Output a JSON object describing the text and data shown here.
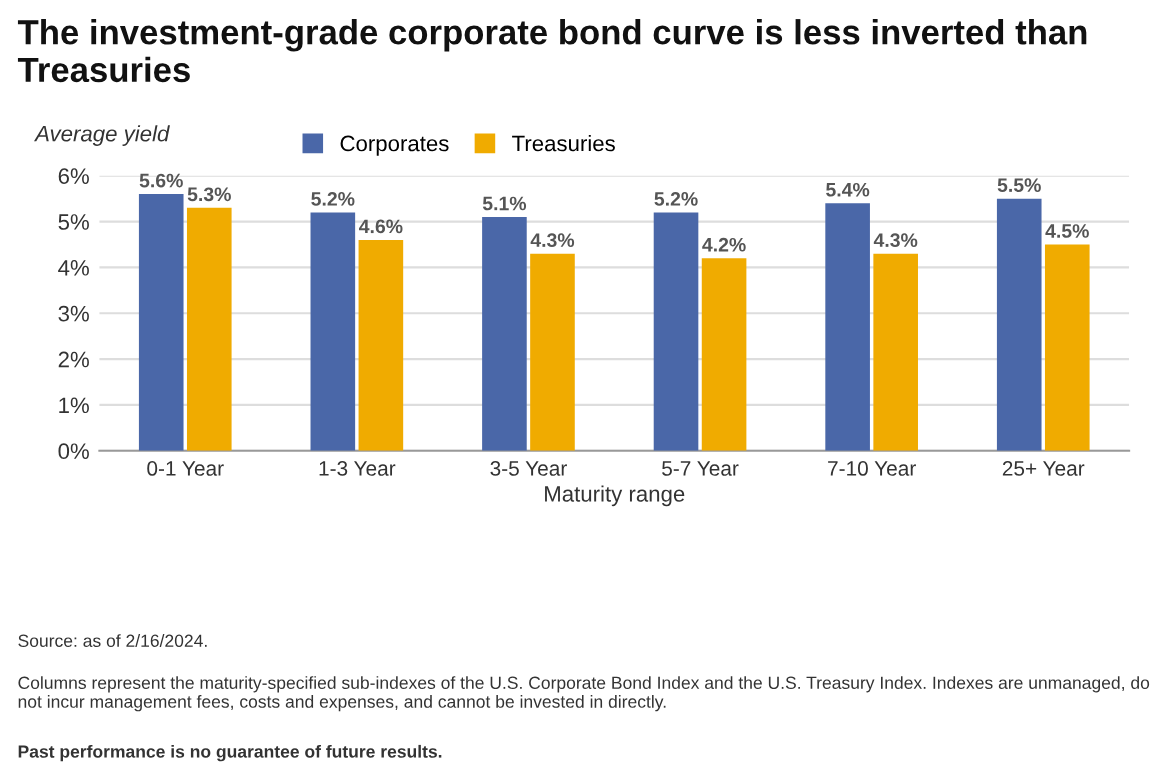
{
  "chart_data": {
    "type": "bar",
    "title": "The investment-grade corporate bond curve is less inverted than Treasuries",
    "ylabel": "Average yield",
    "xlabel": "Maturity range",
    "categories": [
      "0-1 Year",
      "1-3 Year",
      "3-5 Year",
      "5-7 Year",
      "7-10 Year",
      "25+ Year"
    ],
    "series": [
      {
        "name": "Corporates",
        "color": "#4a67a8",
        "values": [
          5.6,
          5.2,
          5.1,
          5.2,
          5.4,
          5.5
        ],
        "value_labels": [
          "5.6%",
          "5.2%",
          "5.1%",
          "5.2%",
          "5.4%",
          "5.5%"
        ]
      },
      {
        "name": "Treasuries",
        "color": "#f0ab00",
        "values": [
          5.3,
          4.6,
          4.3,
          4.2,
          4.3,
          4.5
        ],
        "value_labels": [
          "5.3%",
          "4.6%",
          "4.3%",
          "4.2%",
          "4.3%",
          "4.5%"
        ]
      }
    ],
    "ylim": [
      0,
      6
    ],
    "yticks": [
      {
        "value": 0,
        "label": "0%"
      },
      {
        "value": 1,
        "label": "1%"
      },
      {
        "value": 2,
        "label": "2%"
      },
      {
        "value": 3,
        "label": "3%"
      },
      {
        "value": 4,
        "label": "4%"
      },
      {
        "value": 5,
        "label": "5%"
      },
      {
        "value": 6,
        "label": "6%"
      }
    ],
    "grid": "y",
    "legend": "top",
    "annotations": [
      "Source: as of 2/16/2024.",
      "Columns represent the maturity-specified sub-indexes of the U.S. Corporate Bond Index and the U.S. Treasury Index. Indexes are unmanaged, do not incur management fees, costs and expenses, and cannot be invested in directly.",
      "Past performance is no guarantee of future results."
    ]
  }
}
